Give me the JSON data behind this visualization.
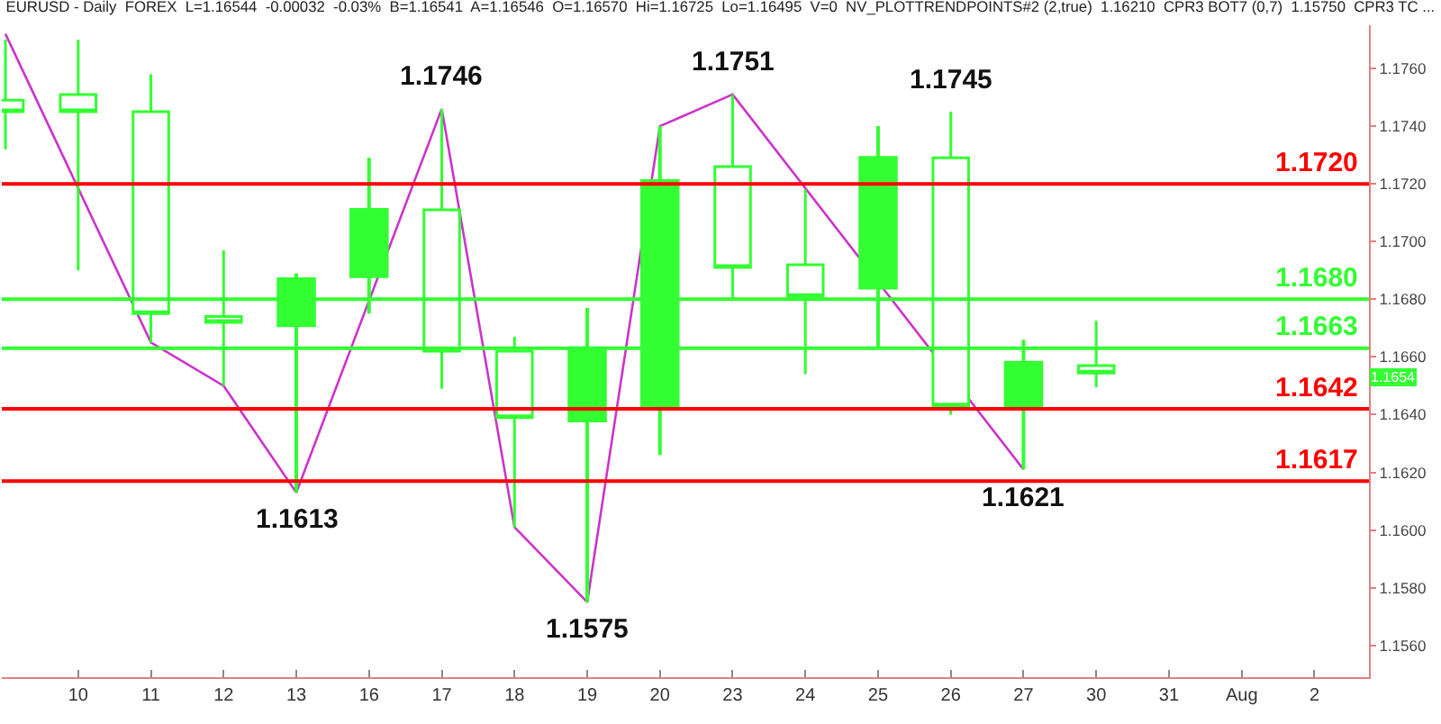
{
  "chart_data": {
    "type": "candlestick",
    "title": "EURUSD - Daily  FOREX  L=1.16544  -0.00032  -0.03%  B=1.16541  A=1.16546  O=1.16570  Hi=1.16725  Lo=1.16495  V=0  NV_PLOTTRENDPOINTS#2 (2,true)  1.16210  CPR3 BOT7 (0,7)  1.15750  CPR3 TC ...",
    "categories": [
      null,
      "10",
      "11",
      "12",
      "13",
      "16",
      "17",
      "18",
      "19",
      "20",
      "23",
      "24",
      "25",
      "26",
      "27",
      "30",
      "31",
      "Aug",
      "2"
    ],
    "series": [
      {
        "type": "candlestick",
        "color": "#33ff33",
        "ohlc": [
          [
            1.1749,
            1.177,
            1.1732,
            1.1745
          ],
          [
            1.1751,
            1.177,
            1.169,
            1.1745
          ],
          [
            1.1745,
            1.1758,
            1.1665,
            1.1675
          ],
          [
            1.1674,
            1.1697,
            1.165,
            1.1672
          ],
          [
            1.1671,
            1.1689,
            1.1613,
            1.1687
          ],
          [
            1.1688,
            1.1729,
            1.1675,
            1.1711
          ],
          [
            1.1711,
            1.1746,
            1.1649,
            1.1662
          ],
          [
            1.1662,
            1.1667,
            1.1601,
            1.1639
          ],
          [
            1.1638,
            1.1677,
            1.1575,
            1.1663
          ],
          [
            1.1643,
            1.174,
            1.1626,
            1.1721
          ],
          [
            1.1726,
            1.1751,
            1.168,
            1.1691
          ],
          [
            1.1692,
            1.1718,
            1.1654,
            1.1681
          ],
          [
            1.1684,
            1.174,
            1.1663,
            1.1729
          ],
          [
            1.1729,
            1.1745,
            1.164,
            1.1643
          ],
          [
            1.1643,
            1.1666,
            1.1621,
            1.1658
          ],
          [
            1.1657,
            1.16725,
            1.16495,
            1.16544
          ],
          null,
          null,
          null
        ]
      },
      {
        "type": "line",
        "color": "#cc33cc",
        "marker": "none",
        "values": [
          1.1772,
          null,
          1.1665,
          1.165,
          1.1613,
          null,
          1.1746,
          1.1601,
          1.1575,
          1.174,
          1.1751,
          null,
          null,
          null,
          1.1621,
          null,
          null,
          null,
          null
        ]
      }
    ],
    "ylim": [
      1.1549,
      1.1775
    ],
    "yticks": [
      {
        "value": 1.156,
        "label": "1.1560"
      },
      {
        "value": 1.158,
        "label": "1.1580"
      },
      {
        "value": 1.16,
        "label": "1.1600"
      },
      {
        "value": 1.162,
        "label": "1.1620"
      },
      {
        "value": 1.164,
        "label": "1.1640"
      },
      {
        "value": 1.166,
        "label": "1.1660"
      },
      {
        "value": 1.168,
        "label": "1.1680"
      },
      {
        "value": 1.17,
        "label": "1.1700"
      },
      {
        "value": 1.172,
        "label": "1.1720"
      },
      {
        "value": 1.174,
        "label": "1.1740"
      },
      {
        "value": 1.176,
        "label": "1.1760"
      }
    ],
    "ref_lines": [
      {
        "axis": "y",
        "value": 1.172,
        "label": "1.1720",
        "color": "#ff0000"
      },
      {
        "axis": "y",
        "value": 1.168,
        "label": "1.1680",
        "color": "#33ff33"
      },
      {
        "axis": "y",
        "value": 1.1663,
        "label": "1.1663",
        "color": "#33ff33"
      },
      {
        "axis": "y",
        "value": 1.1642,
        "label": "1.1642",
        "color": "#ff0000"
      },
      {
        "axis": "y",
        "value": 1.1617,
        "label": "1.1617",
        "color": "#ff0000"
      }
    ],
    "annotations": [
      {
        "text": "1.1746",
        "x": "17",
        "y": 1.1746
      },
      {
        "text": "1.1751",
        "x": "23",
        "y": 1.1751
      },
      {
        "text": "1.1745",
        "x": "26",
        "y": 1.1745
      },
      {
        "text": "1.1613",
        "x": "13",
        "y": 1.1613
      },
      {
        "text": "1.1575",
        "x": "19",
        "y": 1.1575
      },
      {
        "text": "1.1621",
        "x": "27",
        "y": 1.1621
      },
      {
        "text": "1.1654",
        "y": 1.1654
      }
    ],
    "grid": false
  }
}
